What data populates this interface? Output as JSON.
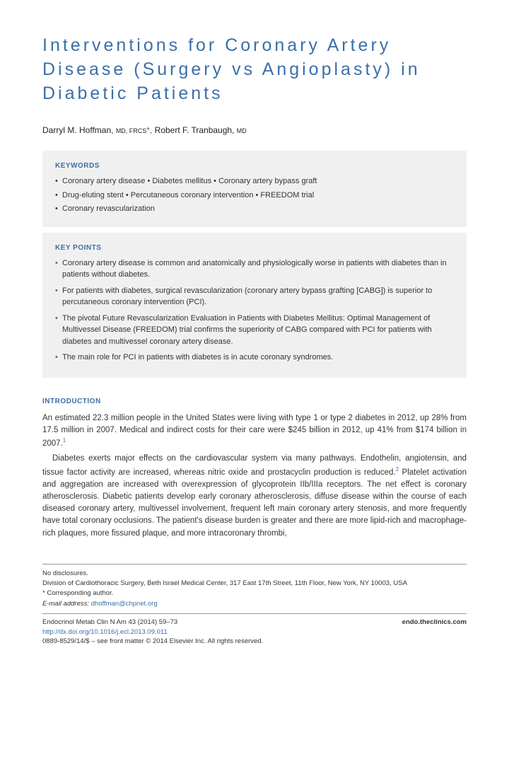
{
  "title": "Interventions for Coronary Artery Disease (Surgery vs Angioplasty) in Diabetic Patients",
  "authors": {
    "line": "Darryl M. Hoffman, ",
    "cred1": "MD, FRCS",
    "sep": "*, ",
    "name2": "Robert F. Tranbaugh, ",
    "cred2": "MD"
  },
  "keywords": {
    "heading": "KEYWORDS",
    "items": [
      "Coronary artery disease • Diabetes mellitus • Coronary artery bypass graft",
      "Drug-eluting stent • Percutaneous coronary intervention • FREEDOM trial",
      "Coronary revascularization"
    ]
  },
  "keypoints": {
    "heading": "KEY POINTS",
    "items": [
      "Coronary artery disease is common and anatomically and physiologically worse in patients with diabetes than in patients without diabetes.",
      "For patients with diabetes, surgical revascularization (coronary artery bypass grafting [CABG]) is superior to percutaneous coronary intervention (PCI).",
      "The pivotal Future Revascularization Evaluation in Patients with Diabetes Mellitus: Optimal Management of Multivessel Disease (FREEDOM) trial confirms the superiority of CABG compared with PCI for patients with diabetes and multivessel coronary artery disease.",
      "The main role for PCI in patients with diabetes is in acute coronary syndromes."
    ]
  },
  "intro": {
    "heading": "INTRODUCTION",
    "p1": "An estimated 22.3 million people in the United States were living with type 1 or type 2 diabetes in 2012, up 28% from 17.5 million in 2007. Medical and indirect costs for their care were $245 billion in 2012, up 41% from $174 billion in 2007.",
    "ref1": "1",
    "p2a": "Diabetes exerts major effects on the cardiovascular system via many pathways. Endothelin, angiotensin, and tissue factor activity are increased, whereas nitric oxide and prostacyclin production is reduced.",
    "ref2": "2",
    "p2b": " Platelet activation and aggregation are increased with overexpression of glycoprotein IIb/IIIa receptors. The net effect is coronary atherosclerosis. Diabetic patients develop early coronary atherosclerosis, diffuse disease within the course of each diseased coronary artery, multivessel involvement, frequent left main coronary artery stenosis, and more frequently have total coronary occlusions. The patient's disease burden is greater and there are more lipid-rich and macrophage-rich plaques, more fissured plaque, and more intracoronary thrombi,"
  },
  "footer": {
    "disclosure": "No disclosures.",
    "affiliation": "Division of Cardiothoracic Surgery, Beth Israel Medical Center, 317 East 17th Street, 11th Floor, New York, NY 10003, USA",
    "corresponding": "* Corresponding author.",
    "email_label": "E-mail address: ",
    "email": "dhoffman@chpnet.org"
  },
  "meta": {
    "citation": "Endocrinol Metab Clin N Am 43 (2014) 59–73",
    "doi": "http://dx.doi.org/10.1016/j.ecl.2013.09.011",
    "site": "endo.theclinics.com",
    "copyright": "0889-8529/14/$ – see front matter © 2014 Elsevier Inc. All rights reserved."
  }
}
